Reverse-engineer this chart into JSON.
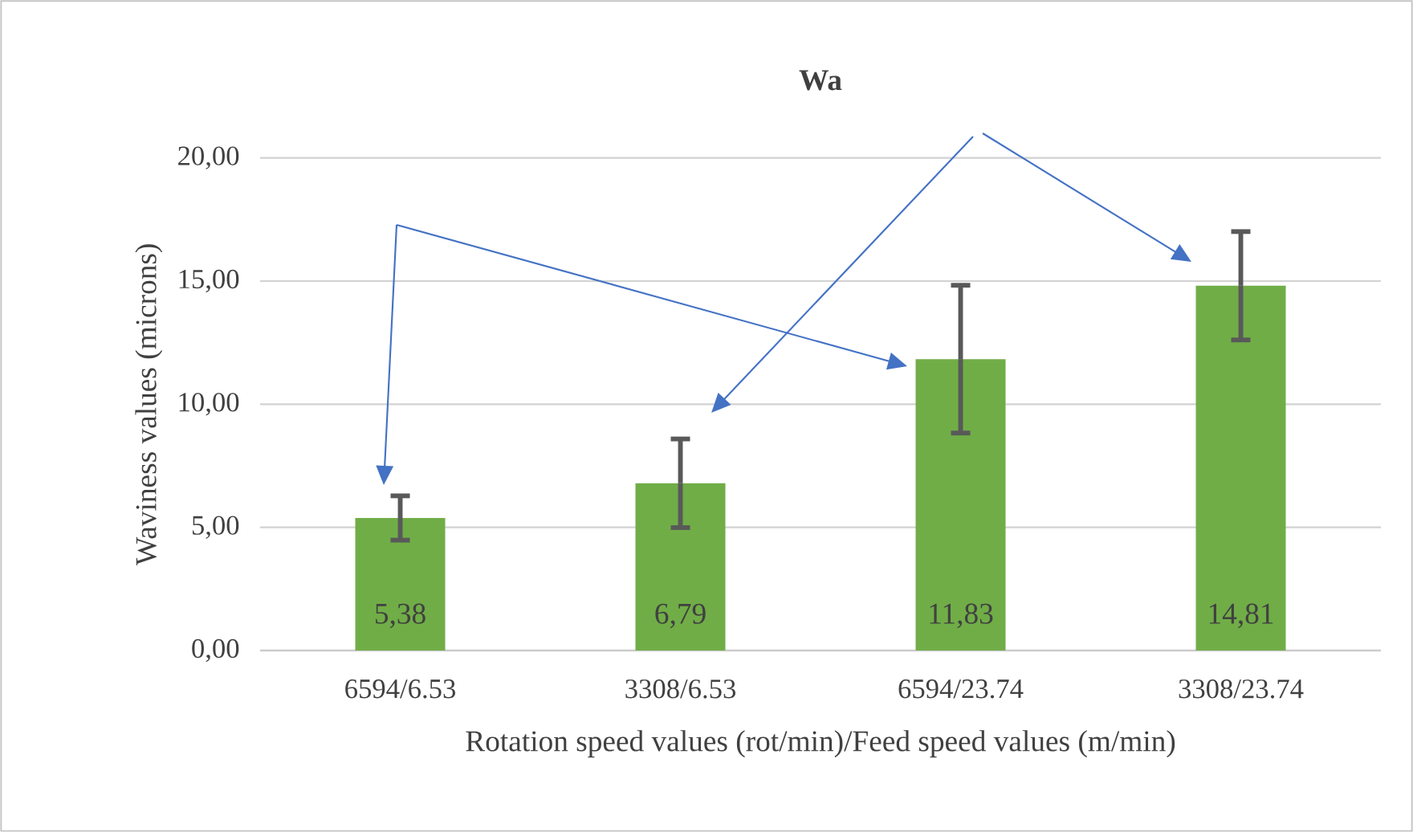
{
  "chart_data": {
    "type": "bar",
    "title": "Wa",
    "xlabel": "Rotation speed values (rot/min)/Feed speed values (m/min)",
    "ylabel": "Waviness values (microns)",
    "categories": [
      "6594/6.53",
      "3308/6.53",
      "6594/23.74",
      "3308/23.74"
    ],
    "values": [
      5.38,
      6.79,
      11.83,
      14.81
    ],
    "value_labels": [
      "5,38",
      "6,79",
      "11,83",
      "14,81"
    ],
    "errors": [
      0.9,
      1.8,
      3.0,
      2.2
    ],
    "color": "#70ad47",
    "ylim": [
      0,
      20
    ],
    "yticks": [
      {
        "value": 0,
        "label": "0,00"
      },
      {
        "value": 5,
        "label": "5,00"
      },
      {
        "value": 10,
        "label": "10,00"
      },
      {
        "value": 15,
        "label": "15,00"
      },
      {
        "value": 20,
        "label": "20,00"
      }
    ],
    "grid": "y"
  }
}
